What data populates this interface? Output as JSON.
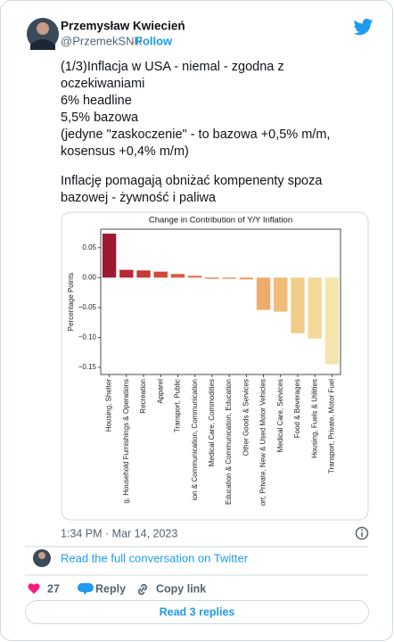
{
  "author": {
    "name": "Przemysław Kwiecień",
    "handle": "@PrzemekSNR",
    "follow": "Follow"
  },
  "tweet": {
    "lines": [
      "(1/3)Inflacja w USA - niemal - zgodna z",
      "oczekiwaniami",
      "6% headline",
      "5,5% bazowa",
      "(jedyne \"zaskoczenie\" - to bazowa +0,5% m/m,",
      "kosensus +0,4% m/m)",
      "Inflację pomagają obniżać kompenenty spoza",
      "bazowej - żywność i paliwa"
    ]
  },
  "chart_data": {
    "type": "bar",
    "title": "Change in Contribution of Y/Y Inflation",
    "y_label": "Percentage Points",
    "categories": [
      "Housing, Shelter",
      "g, Household Furnishings & Operations",
      "Recreation",
      "Apparel",
      "Transport, Public",
      "ion & Communication, Communication",
      "Medical Care, Commodities",
      "Education & Communication, Education",
      "Other Goods & Services",
      "ort, Private, New & Used Motor Vehicles",
      "Medical Care, Services",
      "Food & Beverages",
      "Housing, Fuels & Utilities",
      "Transport, Private, Motor Fuel"
    ],
    "values": [
      0.0735,
      0.013,
      0.012,
      0.01,
      0.006,
      0.003,
      -0.002,
      -0.002,
      -0.003,
      -0.054,
      -0.057,
      -0.093,
      -0.102,
      -0.145
    ],
    "colors": [
      "#9b1a31",
      "#b82833",
      "#c63a35",
      "#d04a3a",
      "#d9593f",
      "#e06945",
      "#e6794d",
      "#eb8955",
      "#ee9a5f",
      "#efab6b",
      "#f0bc78",
      "#f1cb88",
      "#f3d898",
      "#f5e4ab"
    ],
    "ylim": [
      -0.162,
      0.081
    ],
    "yticks": [
      0.05,
      {
        "value": 0,
        "label": "0.00"
      },
      {
        "value": -0.05,
        "label": "−0.05"
      },
      {
        "value": -0.1,
        "label": "−0.10"
      },
      {
        "value": -0.15,
        "label": "−0.15"
      }
    ]
  },
  "footer": {
    "timestamp": "1:34 PM · Mar 14, 2023",
    "conversation": "Read the full conversation on Twitter",
    "likes": 27,
    "reply": "Reply",
    "copy_link": "Copy link",
    "read_replies": "Read 3 replies"
  }
}
